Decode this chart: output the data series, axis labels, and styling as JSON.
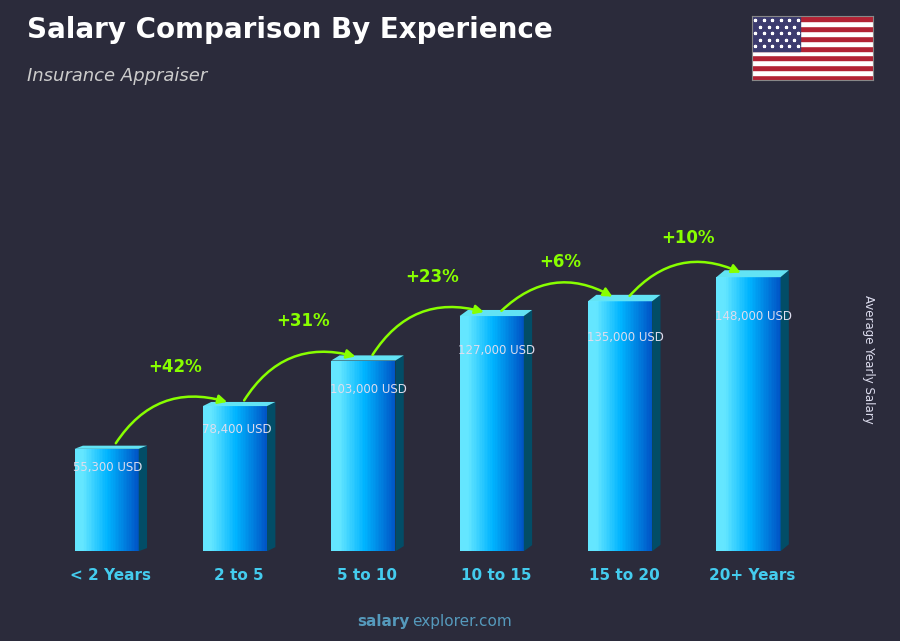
{
  "title": "Salary Comparison By Experience",
  "subtitle": "Insurance Appraiser",
  "ylabel": "Average Yearly Salary",
  "categories": [
    "< 2 Years",
    "2 to 5",
    "5 to 10",
    "10 to 15",
    "15 to 20",
    "20+ Years"
  ],
  "values": [
    55300,
    78400,
    103000,
    127000,
    135000,
    148000
  ],
  "value_labels": [
    "55,300 USD",
    "78,400 USD",
    "103,000 USD",
    "127,000 USD",
    "135,000 USD",
    "148,000 USD"
  ],
  "pct_changes": [
    "+42%",
    "+31%",
    "+23%",
    "+6%",
    "+10%"
  ],
  "bar_face_color": "#00b8d9",
  "bar_left_color": "#44ddff",
  "bar_right_color": "#005f7a",
  "bar_top_color": "#55eeff",
  "bg_color": "#2b2b3b",
  "title_color": "#ffffff",
  "subtitle_color": "#cccccc",
  "tick_color": "#44ccee",
  "pct_color": "#88ff00",
  "salary_color": "#ddddee",
  "watermark_color": "#5599bb",
  "figsize": [
    9.0,
    6.41
  ],
  "dpi": 100
}
